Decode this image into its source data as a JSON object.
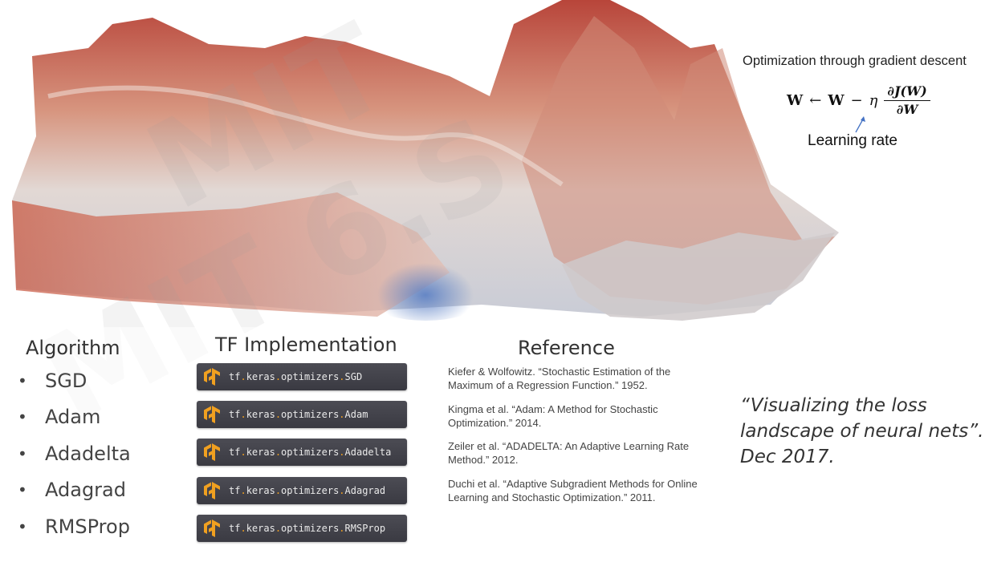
{
  "header": {
    "title": "Optimization through gradient descent",
    "formula": {
      "lhs": "W",
      "arrow": "←",
      "rhs_w": "W",
      "minus": "−",
      "eta": "η",
      "numerator": "∂J(W)",
      "denominator": "∂W"
    },
    "learning_rate_label": "Learning rate"
  },
  "columns": {
    "algorithm": "Algorithm",
    "tf": "TF Implementation",
    "reference": "Reference"
  },
  "algorithms": [
    {
      "name": "SGD",
      "tf_prefix": "tf",
      "tf_mid": "keras",
      "tf_mid2": "optimizers",
      "tf_name": "SGD",
      "reference": "Kiefer & Wolfowitz. “Stochastic Estimation of the Maximum of a Regression Function.” 1952."
    },
    {
      "name": "Adam",
      "tf_prefix": "tf",
      "tf_mid": "keras",
      "tf_mid2": "optimizers",
      "tf_name": "Adam",
      "reference": "Kingma et al. “Adam: A Method for Stochastic Optimization.” 2014."
    },
    {
      "name": "Adadelta",
      "tf_prefix": "tf",
      "tf_mid": "keras",
      "tf_mid2": "optimizers",
      "tf_name": "Adadelta",
      "reference": "Zeiler et al. “ADADELTA: An Adaptive Learning Rate Method.” 2012."
    },
    {
      "name": "Adagrad",
      "tf_prefix": "tf",
      "tf_mid": "keras",
      "tf_mid2": "optimizers",
      "tf_name": "Adagrad",
      "reference": "Duchi et al. “Adaptive Subgradient Methods for Online Learning and Stochastic Optimization.” 2011."
    },
    {
      "name": "RMSProp",
      "tf_prefix": "tf",
      "tf_mid": "keras",
      "tf_mid2": "optimizers",
      "tf_name": "RMSProp",
      "reference": ""
    }
  ],
  "bullet": "•",
  "dot": ".",
  "quote": "“Visualizing the loss landscape of neural nets”. Dec 2017.",
  "colors": {
    "landscape_high": "#b8453a",
    "landscape_mid": "#d9b5a5",
    "landscape_low": "#5a7fc4",
    "pill_bg": "#3f3f47",
    "tf_orange": "#f0a020"
  },
  "icons": {
    "tf_logo": "tensorflow-logo-icon"
  }
}
